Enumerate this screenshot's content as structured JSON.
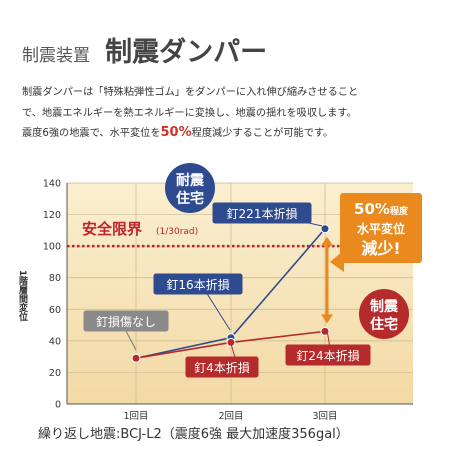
{
  "header": {
    "category": "制震装置",
    "title": "制震ダンパー"
  },
  "description": {
    "line1": "制震ダンパーは「特殊粘弾性ゴム」をダンパーに入れ伸び縮みさせること",
    "line2": "で、地震エネルギーを熱エネルギーに変換し、地震の揺れを吸収します。",
    "line3_pre": "震度6強の地震で、水平変位を",
    "line3_highlight": "50%",
    "line3_post": "程度減少することが可能です。"
  },
  "chart_data": {
    "type": "line",
    "categories": [
      "1回目",
      "2回目",
      "3回目"
    ],
    "series": [
      {
        "name": "耐震住宅",
        "values": [
          29,
          42,
          111
        ],
        "color": "#2f4b8f"
      },
      {
        "name": "制震住宅",
        "values": [
          29,
          39,
          46
        ],
        "color": "#b52a2a"
      }
    ],
    "ylim": [
      0,
      140
    ],
    "yticks": [
      0,
      20,
      40,
      60,
      80,
      100,
      120,
      140
    ],
    "ylabel": "1階層間変位",
    "xlabel": "繰り返し地震:BCJ-L2（震度6強 最大加速度356gal）",
    "grid": true,
    "threshold": {
      "value": 100,
      "label": "安全限界",
      "sublabel": "(1/30rad)"
    },
    "badges": [
      {
        "line1": "耐震",
        "line2": "住宅",
        "color": "#2f4b8f"
      },
      {
        "line1": "制震",
        "line2": "住宅",
        "color": "#b52a2a"
      }
    ],
    "callout": {
      "line1_num": "50%",
      "line1_suffix": "程度",
      "line2": "水平変位",
      "line3": "減少!"
    },
    "annotations": [
      "釘損傷なし",
      "釘16本折損",
      "釘221本折損",
      "釘4本折損",
      "釘24本折損"
    ]
  }
}
